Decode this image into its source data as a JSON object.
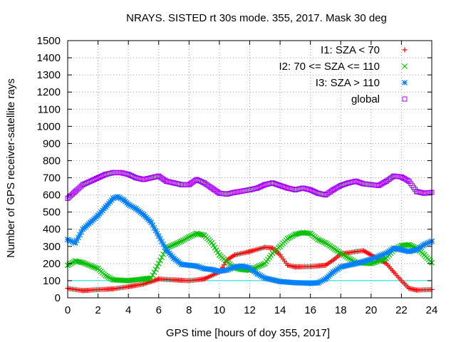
{
  "chart_data": {
    "type": "scatter",
    "title": "NRAYS. SISTED rt 30s mode. 355, 2017. Mask 30 deg",
    "xlabel": "GPS time [hours of doy 355, 2017]",
    "ylabel": "Number of GPS receiver-satellite rays",
    "xlim": [
      0,
      24
    ],
    "ylim": [
      0,
      1500
    ],
    "xticks": [
      0,
      2,
      4,
      6,
      8,
      10,
      12,
      14,
      16,
      18,
      20,
      22,
      24
    ],
    "yticks": [
      0,
      100,
      200,
      300,
      400,
      500,
      600,
      700,
      800,
      900,
      1000,
      1100,
      1200,
      1300,
      1400,
      1500
    ],
    "grid": true,
    "legend_position": "top-right",
    "reference_line": {
      "y": 100,
      "color": "#00e0e0"
    },
    "series": [
      {
        "name": "I1: SZA < 70",
        "marker": "plus",
        "color": "#ff0000",
        "points": [
          [
            0,
            55
          ],
          [
            1,
            42
          ],
          [
            2,
            48
          ],
          [
            3,
            52
          ],
          [
            4,
            65
          ],
          [
            5,
            80
          ],
          [
            5.5,
            95
          ],
          [
            6,
            110
          ],
          [
            7,
            105
          ],
          [
            8,
            100
          ],
          [
            9,
            110
          ],
          [
            10,
            150
          ],
          [
            10.5,
            220
          ],
          [
            11,
            250
          ],
          [
            12,
            270
          ],
          [
            13,
            295
          ],
          [
            13.5,
            290
          ],
          [
            14,
            250
          ],
          [
            14.5,
            190
          ],
          [
            15,
            180
          ],
          [
            16,
            182
          ],
          [
            17,
            190
          ],
          [
            17.5,
            220
          ],
          [
            18,
            255
          ],
          [
            19,
            270
          ],
          [
            19.5,
            275
          ],
          [
            20,
            250
          ],
          [
            20.5,
            225
          ],
          [
            21,
            200
          ],
          [
            21.5,
            150
          ],
          [
            22,
            100
          ],
          [
            22.5,
            55
          ],
          [
            23,
            45
          ],
          [
            24,
            48
          ]
        ]
      },
      {
        "name": "I2: 70 <= SZA <= 110",
        "marker": "x",
        "color": "#00c000",
        "points": [
          [
            0,
            190
          ],
          [
            0.5,
            215
          ],
          [
            1,
            205
          ],
          [
            2,
            170
          ],
          [
            2.5,
            130
          ],
          [
            3,
            105
          ],
          [
            4,
            100
          ],
          [
            5,
            110
          ],
          [
            5.5,
            115
          ],
          [
            6,
            200
          ],
          [
            6.5,
            290
          ],
          [
            7,
            310
          ],
          [
            7.5,
            330
          ],
          [
            8,
            355
          ],
          [
            8.5,
            375
          ],
          [
            9,
            365
          ],
          [
            9.5,
            320
          ],
          [
            10,
            250
          ],
          [
            10.5,
            210
          ],
          [
            11,
            175
          ],
          [
            11.5,
            165
          ],
          [
            12,
            160
          ],
          [
            13,
            200
          ],
          [
            13.5,
            260
          ],
          [
            14,
            300
          ],
          [
            14.5,
            345
          ],
          [
            15,
            370
          ],
          [
            15.5,
            380
          ],
          [
            16,
            375
          ],
          [
            16.5,
            340
          ],
          [
            17,
            320
          ],
          [
            18,
            260
          ],
          [
            19,
            205
          ],
          [
            20,
            200
          ],
          [
            21,
            230
          ],
          [
            21.5,
            280
          ],
          [
            22,
            305
          ],
          [
            22.5,
            310
          ],
          [
            23,
            290
          ],
          [
            23.5,
            250
          ],
          [
            24,
            205
          ]
        ]
      },
      {
        "name": "I3: SZA > 110",
        "marker": "star",
        "color": "#0080ff",
        "points": [
          [
            0,
            340
          ],
          [
            0.5,
            320
          ],
          [
            1,
            400
          ],
          [
            1.5,
            440
          ],
          [
            2,
            480
          ],
          [
            2.5,
            530
          ],
          [
            3,
            580
          ],
          [
            3.3,
            590
          ],
          [
            3.7,
            570
          ],
          [
            4,
            545
          ],
          [
            4.5,
            520
          ],
          [
            5,
            485
          ],
          [
            5.5,
            440
          ],
          [
            6,
            360
          ],
          [
            6.5,
            280
          ],
          [
            7,
            230
          ],
          [
            7.5,
            195
          ],
          [
            8,
            190
          ],
          [
            8.5,
            185
          ],
          [
            9,
            170
          ],
          [
            9.5,
            165
          ],
          [
            10,
            155
          ],
          [
            10.5,
            162
          ],
          [
            11,
            180
          ],
          [
            11.5,
            185
          ],
          [
            12,
            175
          ],
          [
            12.5,
            140
          ],
          [
            13,
            115
          ],
          [
            14,
            95
          ],
          [
            15,
            88
          ],
          [
            16,
            85
          ],
          [
            16.5,
            87
          ],
          [
            17,
            110
          ],
          [
            17.5,
            150
          ],
          [
            18,
            180
          ],
          [
            19,
            200
          ],
          [
            20,
            225
          ],
          [
            21,
            260
          ],
          [
            21.5,
            290
          ],
          [
            22,
            280
          ],
          [
            22.5,
            270
          ],
          [
            23,
            280
          ],
          [
            23.5,
            310
          ],
          [
            24,
            330
          ]
        ]
      },
      {
        "name": "global",
        "marker": "square",
        "color": "#a000ff",
        "points": [
          [
            0,
            580
          ],
          [
            0.5,
            620
          ],
          [
            1,
            660
          ],
          [
            2,
            700
          ],
          [
            2.5,
            720
          ],
          [
            3,
            730
          ],
          [
            3.5,
            730
          ],
          [
            4,
            720
          ],
          [
            4.5,
            700
          ],
          [
            5,
            690
          ],
          [
            5.5,
            700
          ],
          [
            6,
            710
          ],
          [
            6.5,
            680
          ],
          [
            7,
            670
          ],
          [
            7.5,
            660
          ],
          [
            8,
            660
          ],
          [
            8.5,
            690
          ],
          [
            9,
            670
          ],
          [
            9.5,
            640
          ],
          [
            10,
            610
          ],
          [
            10.5,
            605
          ],
          [
            11,
            615
          ],
          [
            12,
            630
          ],
          [
            12.5,
            640
          ],
          [
            13,
            660
          ],
          [
            13.5,
            670
          ],
          [
            14,
            655
          ],
          [
            14.5,
            640
          ],
          [
            15,
            630
          ],
          [
            15.5,
            640
          ],
          [
            16,
            630
          ],
          [
            16.5,
            610
          ],
          [
            17,
            600
          ],
          [
            17.5,
            630
          ],
          [
            18,
            655
          ],
          [
            18.5,
            670
          ],
          [
            19,
            680
          ],
          [
            19.5,
            665
          ],
          [
            20,
            660
          ],
          [
            20.5,
            655
          ],
          [
            21,
            680
          ],
          [
            21.5,
            710
          ],
          [
            22,
            705
          ],
          [
            22.5,
            680
          ],
          [
            23,
            620
          ],
          [
            23.5,
            610
          ],
          [
            24,
            615
          ]
        ]
      }
    ]
  }
}
